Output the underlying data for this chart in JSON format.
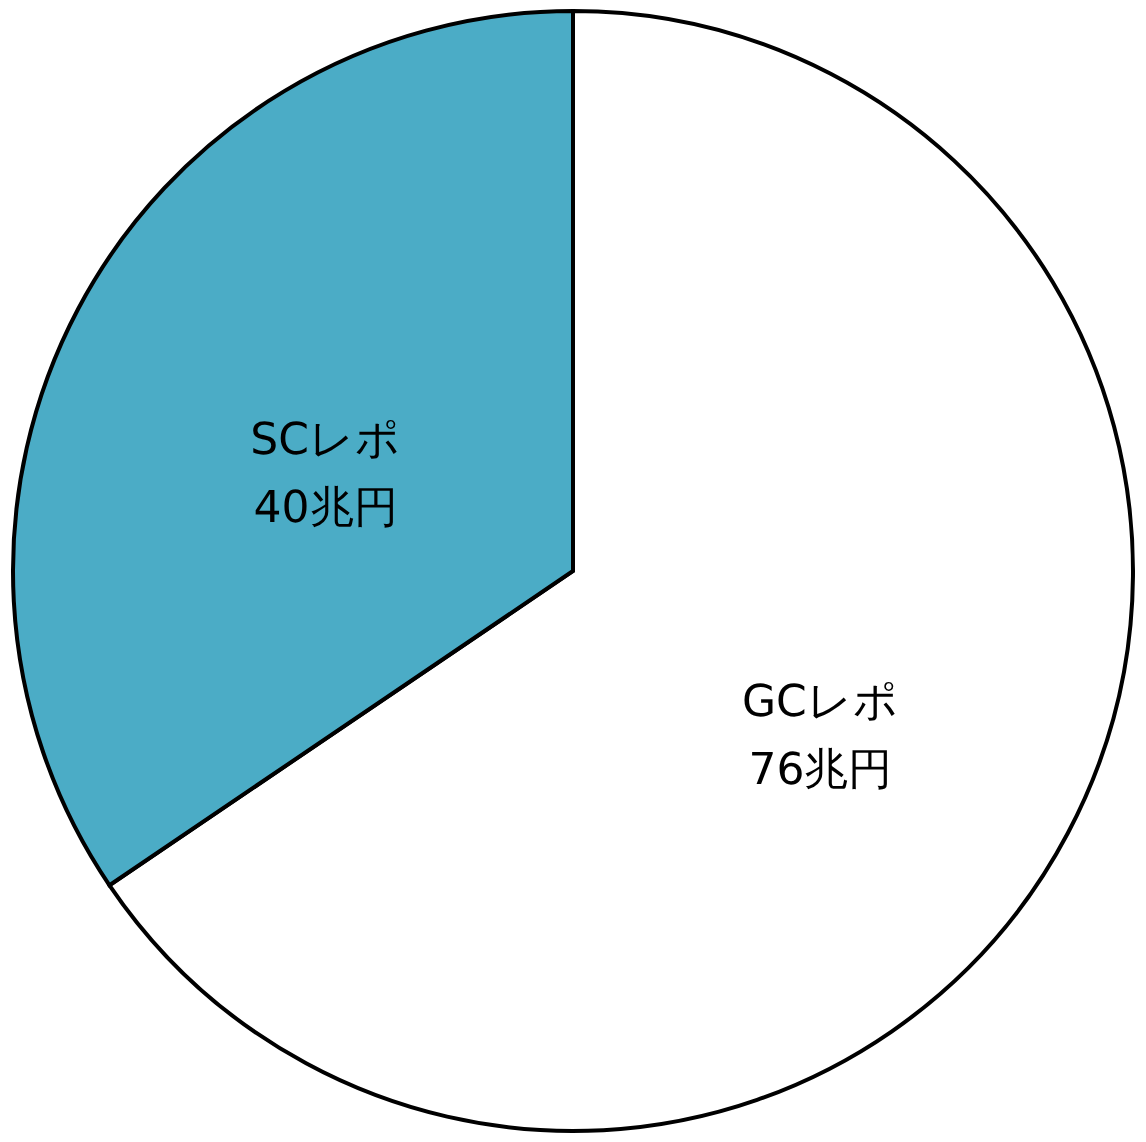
{
  "chart_data": {
    "type": "pie",
    "categories": [
      "GCレポ",
      "SCレポ"
    ],
    "values": [
      76,
      40
    ],
    "colors": [
      "#ffffff",
      "#4bacc6"
    ],
    "value_labels": [
      "76兆円",
      "40兆円"
    ],
    "legend": false
  }
}
